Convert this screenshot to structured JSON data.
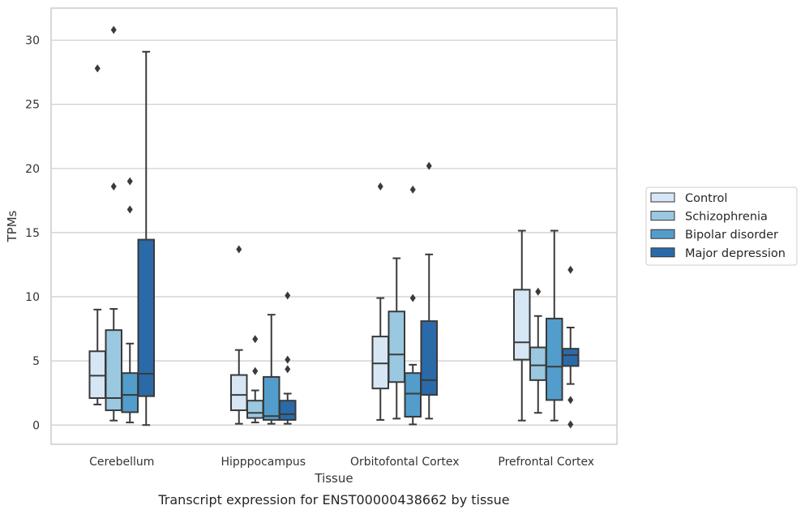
{
  "caption": "Transcript expression for ENST00000438662 by tissue",
  "chart_data": {
    "type": "box",
    "title": "",
    "xlabel": "Tissue",
    "ylabel": "TPMs",
    "ylim": [
      -1.5,
      32.5
    ],
    "yticks": [
      0,
      5,
      10,
      15,
      20,
      25,
      30
    ],
    "grid": "horizontal",
    "legend_position": "outside-right",
    "categories": [
      "Cerebellum",
      "Hipppocampus",
      "Orbitofontal Cortex",
      "Prefrontal Cortex"
    ],
    "series": [
      {
        "name": "Control",
        "color": "#d6e6f4",
        "boxes": [
          {
            "category": "Cerebellum",
            "whisker_low": 1.6,
            "q1": 2.1,
            "median": 3.85,
            "q3": 5.75,
            "whisker_high": 9.0,
            "outliers": [
              27.8
            ]
          },
          {
            "category": "Hipppocampus",
            "whisker_low": 0.1,
            "q1": 1.15,
            "median": 2.35,
            "q3": 3.9,
            "whisker_high": 5.85,
            "outliers": [
              13.7
            ]
          },
          {
            "category": "Orbitofontal Cortex",
            "whisker_low": 0.4,
            "q1": 2.85,
            "median": 4.8,
            "q3": 6.9,
            "whisker_high": 9.9,
            "outliers": [
              18.6
            ]
          },
          {
            "category": "Prefrontal Cortex",
            "whisker_low": 0.35,
            "q1": 5.1,
            "median": 6.45,
            "q3": 10.55,
            "whisker_high": 15.15,
            "outliers": []
          }
        ]
      },
      {
        "name": "Schizophrenia",
        "color": "#9ac8e0",
        "boxes": [
          {
            "category": "Cerebellum",
            "whisker_low": 0.35,
            "q1": 1.15,
            "median": 2.1,
            "q3": 7.4,
            "whisker_high": 9.05,
            "outliers": [
              30.8,
              18.6
            ]
          },
          {
            "category": "Hipppocampus",
            "whisker_low": 0.2,
            "q1": 0.55,
            "median": 0.95,
            "q3": 1.9,
            "whisker_high": 2.7,
            "outliers": [
              6.7,
              4.2
            ]
          },
          {
            "category": "Orbitofontal Cortex",
            "whisker_low": 0.5,
            "q1": 3.35,
            "median": 5.5,
            "q3": 8.85,
            "whisker_high": 13.0,
            "outliers": []
          },
          {
            "category": "Prefrontal Cortex",
            "whisker_low": 0.95,
            "q1": 3.5,
            "median": 4.65,
            "q3": 6.05,
            "whisker_high": 8.5,
            "outliers": [
              10.4
            ]
          }
        ]
      },
      {
        "name": "Bipolar disorder",
        "color": "#529dcc",
        "boxes": [
          {
            "category": "Cerebellum",
            "whisker_low": 0.2,
            "q1": 1.0,
            "median": 2.35,
            "q3": 4.05,
            "whisker_high": 6.35,
            "outliers": [
              19.0,
              16.8
            ]
          },
          {
            "category": "Hipppocampus",
            "whisker_low": 0.1,
            "q1": 0.4,
            "median": 0.7,
            "q3": 3.75,
            "whisker_high": 8.6,
            "outliers": []
          },
          {
            "category": "Orbitofontal Cortex",
            "whisker_low": 0.05,
            "q1": 0.65,
            "median": 2.45,
            "q3": 4.05,
            "whisker_high": 4.7,
            "outliers": [
              18.35,
              9.9
            ]
          },
          {
            "category": "Prefrontal Cortex",
            "whisker_low": 0.35,
            "q1": 1.95,
            "median": 4.55,
            "q3": 8.3,
            "whisker_high": 15.15,
            "outliers": []
          }
        ]
      },
      {
        "name": "Major depression",
        "color": "#2a6aa9",
        "boxes": [
          {
            "category": "Cerebellum",
            "whisker_low": 0.0,
            "q1": 2.25,
            "median": 4.0,
            "q3": 14.45,
            "whisker_high": 29.1,
            "outliers": []
          },
          {
            "category": "Hipppocampus",
            "whisker_low": 0.1,
            "q1": 0.4,
            "median": 0.85,
            "q3": 1.9,
            "whisker_high": 2.45,
            "outliers": [
              10.1,
              5.1,
              4.35
            ]
          },
          {
            "category": "Orbitofontal Cortex",
            "whisker_low": 0.5,
            "q1": 2.35,
            "median": 3.5,
            "q3": 8.1,
            "whisker_high": 13.3,
            "outliers": [
              20.2
            ]
          },
          {
            "category": "Prefrontal Cortex",
            "whisker_low": 3.2,
            "q1": 4.6,
            "median": 5.45,
            "q3": 5.95,
            "whisker_high": 7.6,
            "outliers": [
              12.1,
              1.95,
              0.05
            ]
          }
        ]
      }
    ]
  }
}
